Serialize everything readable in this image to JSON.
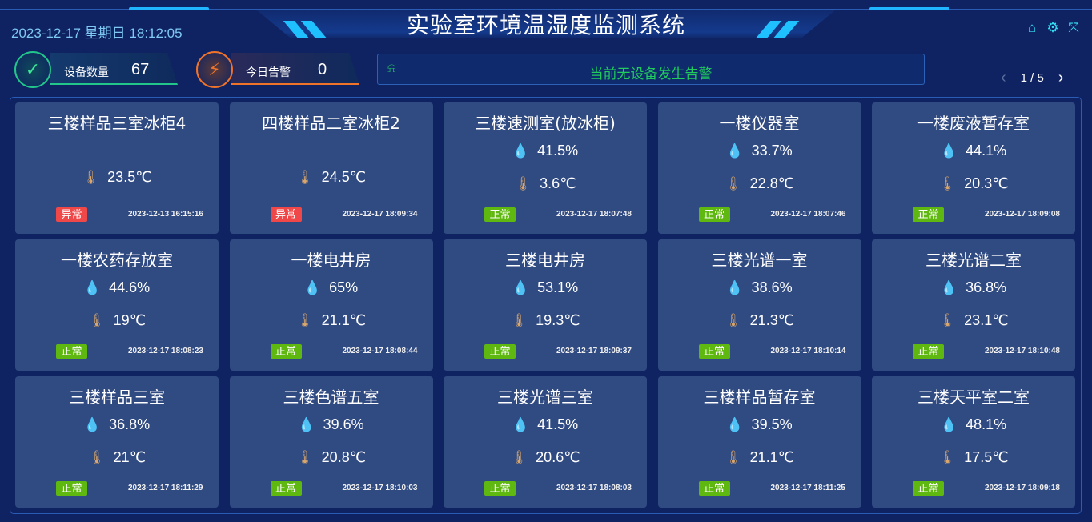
{
  "header": {
    "title": "实验室环境温湿度监测系统",
    "datetime": "2023-12-17 星期日 18:12:05",
    "icons": [
      "home-icon",
      "gear-icon",
      "fullscreen-icon"
    ]
  },
  "stats": [
    {
      "label": "设备数量",
      "value": "67",
      "icon": "check-cycle-icon",
      "color": "#22c58a"
    },
    {
      "label": "今日告警",
      "value": "0",
      "icon": "siren-icon",
      "color": "#f0732a"
    }
  ],
  "alarm": {
    "icon": "siren-icon",
    "text": "当前无设备发生告警"
  },
  "pager": {
    "text": "1 / 5",
    "current": 1,
    "total": 5
  },
  "colors": {
    "ok": "#5fb80f",
    "bad": "#f04848",
    "humidity": "#22d3ee",
    "card": "#304a82"
  },
  "cards": [
    {
      "name": "三楼样品三室冰柜4",
      "humidity": null,
      "temperature": "23.5℃",
      "status": "异常",
      "ok": false,
      "time": "2023-12-13 16:15:16"
    },
    {
      "name": "四楼样品二室冰柜2",
      "humidity": null,
      "temperature": "24.5℃",
      "status": "异常",
      "ok": false,
      "time": "2023-12-17 18:09:34"
    },
    {
      "name": "三楼速测室(放冰柜)",
      "humidity": "41.5%",
      "temperature": "3.6℃",
      "status": "正常",
      "ok": true,
      "time": "2023-12-17 18:07:48"
    },
    {
      "name": "一楼仪器室",
      "humidity": "33.7%",
      "temperature": "22.8℃",
      "status": "正常",
      "ok": true,
      "time": "2023-12-17 18:07:46"
    },
    {
      "name": "一楼废液暂存室",
      "humidity": "44.1%",
      "temperature": "20.3℃",
      "status": "正常",
      "ok": true,
      "time": "2023-12-17 18:09:08"
    },
    {
      "name": "一楼农药存放室",
      "humidity": "44.6%",
      "temperature": "19℃",
      "status": "正常",
      "ok": true,
      "time": "2023-12-17 18:08:23"
    },
    {
      "name": "一楼电井房",
      "humidity": "65%",
      "temperature": "21.1℃",
      "status": "正常",
      "ok": true,
      "time": "2023-12-17 18:08:44"
    },
    {
      "name": "三楼电井房",
      "humidity": "53.1%",
      "temperature": "19.3℃",
      "status": "正常",
      "ok": true,
      "time": "2023-12-17 18:09:37"
    },
    {
      "name": "三楼光谱一室",
      "humidity": "38.6%",
      "temperature": "21.3℃",
      "status": "正常",
      "ok": true,
      "time": "2023-12-17 18:10:14"
    },
    {
      "name": "三楼光谱二室",
      "humidity": "36.8%",
      "temperature": "23.1℃",
      "status": "正常",
      "ok": true,
      "time": "2023-12-17 18:10:48"
    },
    {
      "name": "三楼样品三室",
      "humidity": "36.8%",
      "temperature": "21℃",
      "status": "正常",
      "ok": true,
      "time": "2023-12-17 18:11:29"
    },
    {
      "name": "三楼色谱五室",
      "humidity": "39.6%",
      "temperature": "20.8℃",
      "status": "正常",
      "ok": true,
      "time": "2023-12-17 18:10:03"
    },
    {
      "name": "三楼光谱三室",
      "humidity": "41.5%",
      "temperature": "20.6℃",
      "status": "正常",
      "ok": true,
      "time": "2023-12-17 18:08:03"
    },
    {
      "name": "三楼样品暂存室",
      "humidity": "39.5%",
      "temperature": "21.1℃",
      "status": "正常",
      "ok": true,
      "time": "2023-12-17 18:11:25"
    },
    {
      "name": "三楼天平室二室",
      "humidity": "48.1%",
      "temperature": "17.5℃",
      "status": "正常",
      "ok": true,
      "time": "2023-12-17 18:09:18"
    }
  ]
}
